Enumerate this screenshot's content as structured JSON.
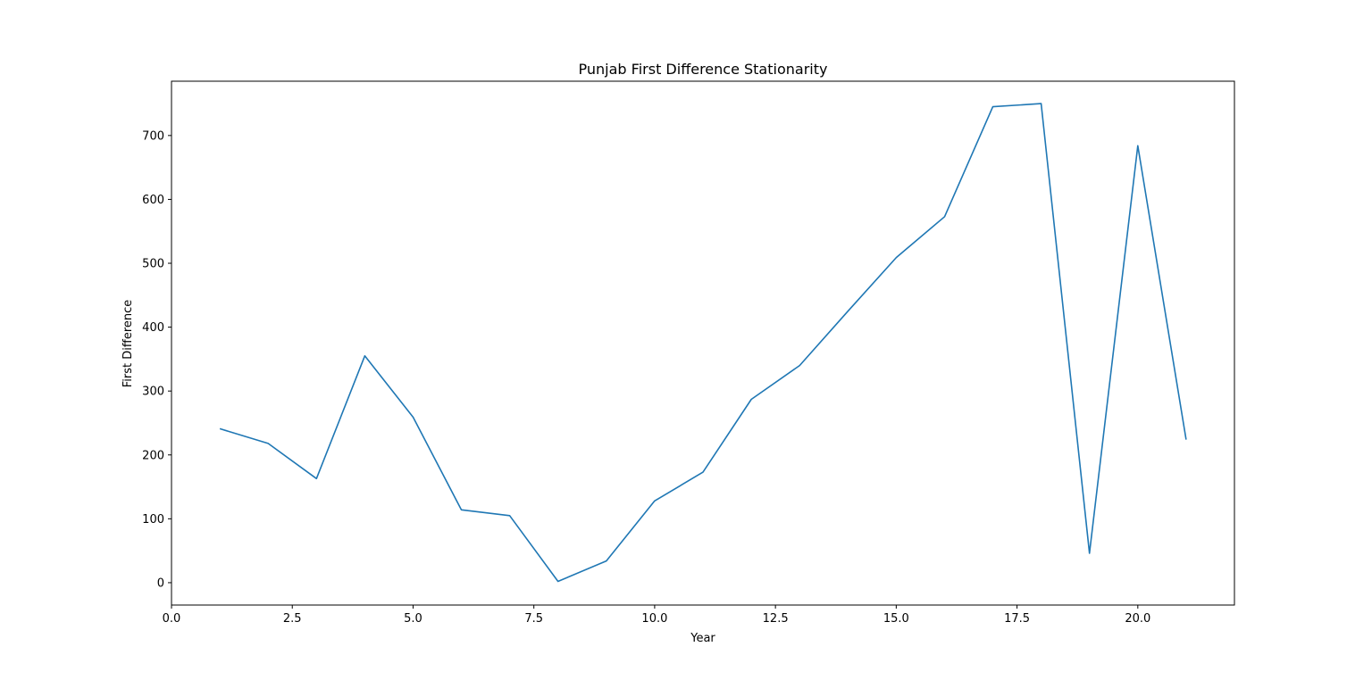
{
  "chart_data": {
    "type": "line",
    "title": "Punjab First Difference Stationarity",
    "xlabel": "Year",
    "ylabel": "First Difference",
    "xlim": [
      0,
      22
    ],
    "ylim": [
      -35,
      785
    ],
    "xticks": [
      0,
      2.5,
      5,
      7.5,
      10,
      12.5,
      15,
      17.5,
      20
    ],
    "xtick_labels": [
      "0.0",
      "2.5",
      "5.0",
      "7.5",
      "10.0",
      "12.5",
      "15.0",
      "17.5",
      "20.0"
    ],
    "yticks": [
      0,
      100,
      200,
      300,
      400,
      500,
      600,
      700
    ],
    "ytick_labels": [
      "0",
      "100",
      "200",
      "300",
      "400",
      "500",
      "600",
      "700"
    ],
    "grid": false,
    "series": [
      {
        "color": "#1f77b4",
        "x": [
          1,
          2,
          3,
          4,
          5,
          6,
          7,
          8,
          9,
          10,
          11,
          12,
          13,
          14,
          15,
          16,
          17,
          18,
          19,
          20,
          21
        ],
        "y": [
          241,
          218,
          163,
          355,
          259,
          114,
          105,
          2,
          34,
          128,
          173,
          287,
          340,
          425,
          509,
          573,
          745,
          750,
          46,
          684,
          224
        ]
      }
    ]
  }
}
